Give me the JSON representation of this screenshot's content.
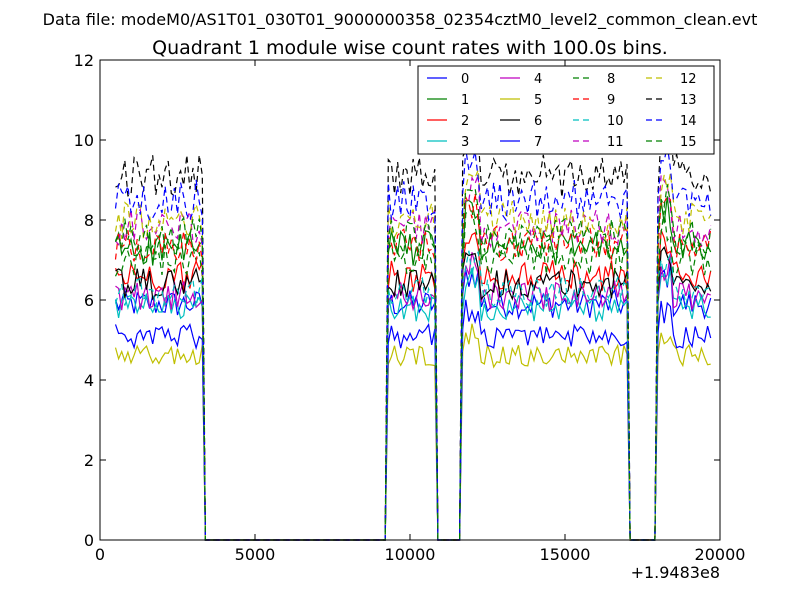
{
  "chart_data": {
    "type": "line",
    "suptitle": "Data file: modeM0/AS1T01_030T01_9000000358_02354cztM0_level2_common_clean.evt",
    "title": "Quadrant 1 module wise count rates with 100.0s bins.",
    "xlabel": "",
    "ylabel": "",
    "x_offset_label": "+1.9483e8",
    "xlim": [
      0,
      20000
    ],
    "ylim": [
      0,
      12
    ],
    "x_ticks": [
      0,
      5000,
      10000,
      15000,
      20000
    ],
    "x_tick_labels": [
      "0",
      "5000",
      "10000",
      "15000",
      "20000"
    ],
    "y_ticks": [
      0,
      2,
      4,
      6,
      8,
      10,
      12
    ],
    "y_tick_labels": [
      "0",
      "2",
      "4",
      "6",
      "8",
      "10",
      "12"
    ],
    "grid": false,
    "legend_position": "top-right",
    "bin_size": 100,
    "active_intervals": [
      [
        500,
        3300
      ],
      [
        9300,
        10800
      ],
      [
        11700,
        17000
      ],
      [
        18000,
        19700
      ]
    ],
    "series": [
      {
        "name": "0",
        "color": "#0000ff",
        "style": "solid",
        "level": 5.9
      },
      {
        "name": "1",
        "color": "#008000",
        "style": "solid",
        "level": 7.3
      },
      {
        "name": "2",
        "color": "#ff0000",
        "style": "solid",
        "level": 6.6
      },
      {
        "name": "3",
        "color": "#00bfbf",
        "style": "solid",
        "level": 5.8
      },
      {
        "name": "4",
        "color": "#bf00bf",
        "style": "solid",
        "level": 6.1
      },
      {
        "name": "5",
        "color": "#bfbf00",
        "style": "solid",
        "level": 4.6
      },
      {
        "name": "6",
        "color": "#000000",
        "style": "solid",
        "level": 6.4
      },
      {
        "name": "7",
        "color": "#0000ff",
        "style": "solid",
        "level": 5.1
      },
      {
        "name": "8",
        "color": "#008000",
        "style": "dashed",
        "level": 7.0
      },
      {
        "name": "9",
        "color": "#ff0000",
        "style": "dashed",
        "level": 7.4
      },
      {
        "name": "10",
        "color": "#00bfbf",
        "style": "dashed",
        "level": 6.2
      },
      {
        "name": "11",
        "color": "#bf00bf",
        "style": "dashed",
        "level": 7.8
      },
      {
        "name": "12",
        "color": "#bfbf00",
        "style": "dashed",
        "level": 8.0
      },
      {
        "name": "13",
        "color": "#000000",
        "style": "dashed",
        "level": 9.1
      },
      {
        "name": "14",
        "color": "#0000ff",
        "style": "dashed",
        "level": 8.5
      },
      {
        "name": "15",
        "color": "#008000",
        "style": "dashed",
        "level": 7.6
      }
    ]
  }
}
